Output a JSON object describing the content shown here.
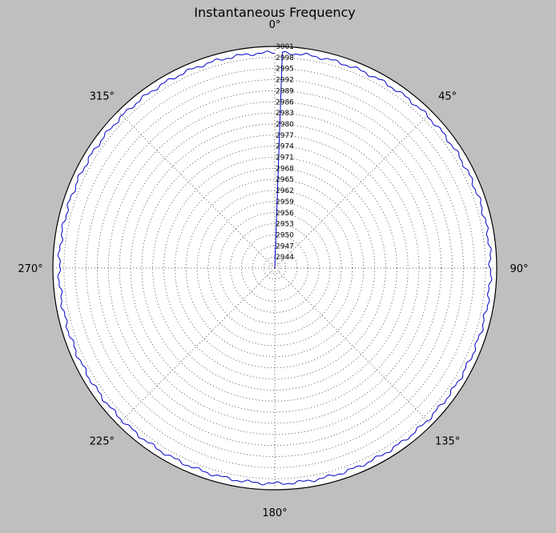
{
  "chart_data": {
    "type": "polar-line",
    "title": "Instantaneous Frequency",
    "theta_ticks": [
      {
        "angle": 0,
        "label": "0°"
      },
      {
        "angle": 45,
        "label": "45°"
      },
      {
        "angle": 90,
        "label": "90°"
      },
      {
        "angle": 135,
        "label": "135°"
      },
      {
        "angle": 180,
        "label": "180°"
      },
      {
        "angle": 225,
        "label": "225°"
      },
      {
        "angle": 270,
        "label": "270°"
      },
      {
        "angle": 315,
        "label": "315°"
      }
    ],
    "theta_direction": "clockwise",
    "theta_zero_location": "top",
    "r_range": [
      2941,
      3001
    ],
    "r_ticks": [
      "2944",
      "2947",
      "2950",
      "2953",
      "2956",
      "2959",
      "2962",
      "2965",
      "2968",
      "2971",
      "2974",
      "2977",
      "2980",
      "2983",
      "2986",
      "2989",
      "2992",
      "2995",
      "2998",
      "3001"
    ],
    "grid": true,
    "series": [
      {
        "color": "#0000cc",
        "description_values": {
          "start": {
            "theta_deg": 0,
            "r": 2941
          },
          "rise_to": {
            "theta_deg": 2,
            "r": 3001
          },
          "mean_r": 2999.3,
          "oscillation_amplitude": 0.5
        }
      }
    ]
  }
}
